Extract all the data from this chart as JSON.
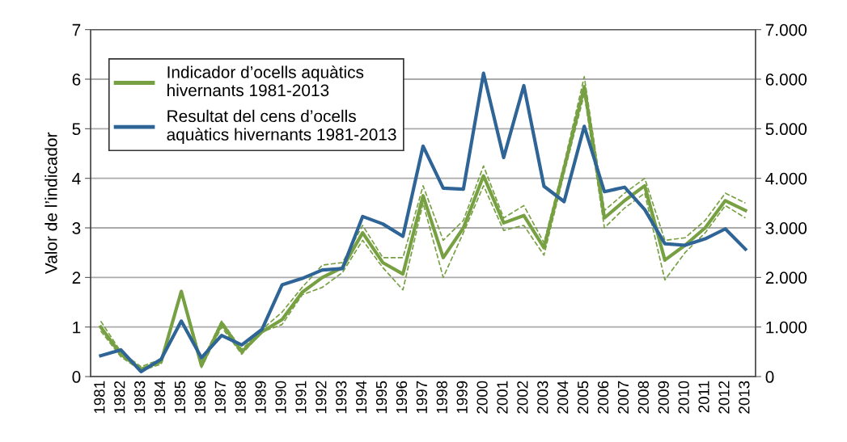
{
  "chart_data": {
    "type": "line",
    "ylabel": "Valor de l’indicador",
    "categories": [
      "1981",
      "1982",
      "1983",
      "1984",
      "1985",
      "1986",
      "1987",
      "1988",
      "1989",
      "1990",
      "1991",
      "1992",
      "1993",
      "1994",
      "1995",
      "1996",
      "1997",
      "1998",
      "1999",
      "2000",
      "2001",
      "2002",
      "2003",
      "2004",
      "2005",
      "2006",
      "2007",
      "2008",
      "2009",
      "2010",
      "2011",
      "2012",
      "2013"
    ],
    "series": [
      {
        "color": "#77a043",
        "line_style": "dashed",
        "values": [
          0.92,
          0.4,
          0.12,
          0.25,
          1.68,
          0.18,
          1.0,
          0.45,
          0.9,
          1.05,
          1.65,
          1.8,
          2.1,
          2.75,
          2.2,
          1.75,
          3.5,
          2.0,
          2.9,
          3.85,
          2.95,
          3.05,
          2.45,
          4.1,
          5.7,
          3.0,
          3.4,
          3.7,
          1.95,
          2.5,
          2.9,
          3.45,
          3.2
        ]
      },
      {
        "color": "#77a043",
        "line_style": "dashed",
        "values": [
          1.12,
          0.5,
          0.2,
          0.35,
          1.75,
          0.3,
          1.12,
          0.55,
          0.95,
          1.3,
          1.8,
          2.25,
          2.3,
          3.05,
          2.4,
          2.4,
          3.85,
          2.75,
          3.15,
          4.25,
          3.2,
          3.45,
          2.7,
          4.3,
          6.05,
          3.35,
          3.7,
          4.0,
          2.75,
          2.8,
          3.15,
          3.7,
          3.5
        ]
      },
      {
        "name": "Indicador d’ocells aquàtics hivernants 1981-2013",
        "color": "#77a043",
        "values": [
          1.0,
          0.45,
          0.15,
          0.3,
          1.72,
          0.22,
          1.08,
          0.5,
          0.9,
          1.15,
          1.7,
          2.0,
          2.2,
          2.9,
          2.3,
          2.07,
          3.65,
          2.4,
          3.0,
          4.05,
          3.1,
          3.25,
          2.6,
          4.2,
          5.85,
          3.2,
          3.55,
          3.85,
          2.35,
          2.65,
          3.0,
          3.55,
          3.35
        ]
      },
      {
        "name": "Resultat del cens d’ocells aquàtics hivernants 1981-2013",
        "color": "#2e6496",
        "axis": "y2",
        "values": [
          420,
          540,
          100,
          350,
          1120,
          380,
          830,
          640,
          950,
          1850,
          1980,
          2150,
          2180,
          3230,
          3080,
          2830,
          4650,
          3800,
          3780,
          6120,
          4420,
          5870,
          3840,
          3530,
          5050,
          3730,
          3820,
          3370,
          2680,
          2650,
          2780,
          2980,
          2570
        ]
      }
    ],
    "ylim": [
      0,
      7
    ],
    "yticks": [
      0,
      1,
      2,
      3,
      4,
      5,
      6,
      7
    ],
    "y2lim": [
      0,
      7000
    ],
    "y2ticks": [
      0,
      {
        "value": 1000,
        "label": "1.000"
      },
      {
        "value": 2000,
        "label": "2.000"
      },
      {
        "value": 3000,
        "label": "3.000"
      },
      {
        "value": 4000,
        "label": "4.000"
      },
      {
        "value": 5000,
        "label": "5.000"
      },
      {
        "value": 6000,
        "label": "6.000"
      },
      {
        "value": 7000,
        "label": "7.000"
      }
    ],
    "grid": "y",
    "legend": "top left",
    "marker": "none",
    "line_style": "solid"
  }
}
